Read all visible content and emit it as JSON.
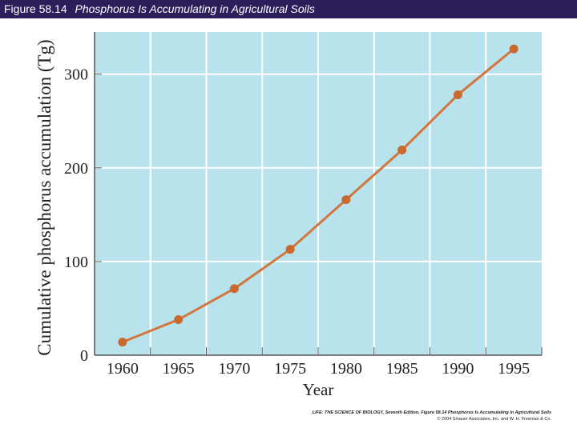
{
  "header": {
    "figure_number": "Figure 58.14",
    "figure_title": "Phosphorus Is Accumulating in Agricultural Soils"
  },
  "chart_data": {
    "type": "line",
    "title": "",
    "xlabel": "Year",
    "ylabel": "Cumulative phosphorus accumulation (Tg)",
    "x": [
      1960,
      1965,
      1970,
      1975,
      1980,
      1985,
      1990,
      1995
    ],
    "series": [
      {
        "name": "Cumulative phosphorus accumulation",
        "values": [
          14,
          38,
          71,
          113,
          166,
          219,
          278,
          327
        ]
      }
    ],
    "x_ticks": [
      "1960",
      "1965",
      "1970",
      "1975",
      "1980",
      "1985",
      "1990",
      "1995"
    ],
    "y_ticks": [
      {
        "value": 0,
        "label": "0"
      },
      {
        "value": 100,
        "label": "100"
      },
      {
        "value": 200,
        "label": "200"
      },
      {
        "value": 300,
        "label": "300"
      }
    ],
    "xlim": [
      1957.5,
      1997.5
    ],
    "ylim": [
      0,
      345
    ],
    "grid": true,
    "colors": {
      "background": "#b8e2ec",
      "line": "#d2763d",
      "marker": "#c9692f",
      "grid": "#ffffff",
      "axis": "#555555"
    }
  },
  "credit": {
    "line1": "LIFE: THE SCIENCE OF BIOLOGY, Seventh Edition, Figure 58.14 Phosphorus Is Accumulating in Agricultural Soils",
    "line2": "© 2004 Sinauer Associates, Inc. and W. H. Freeman & Co."
  }
}
